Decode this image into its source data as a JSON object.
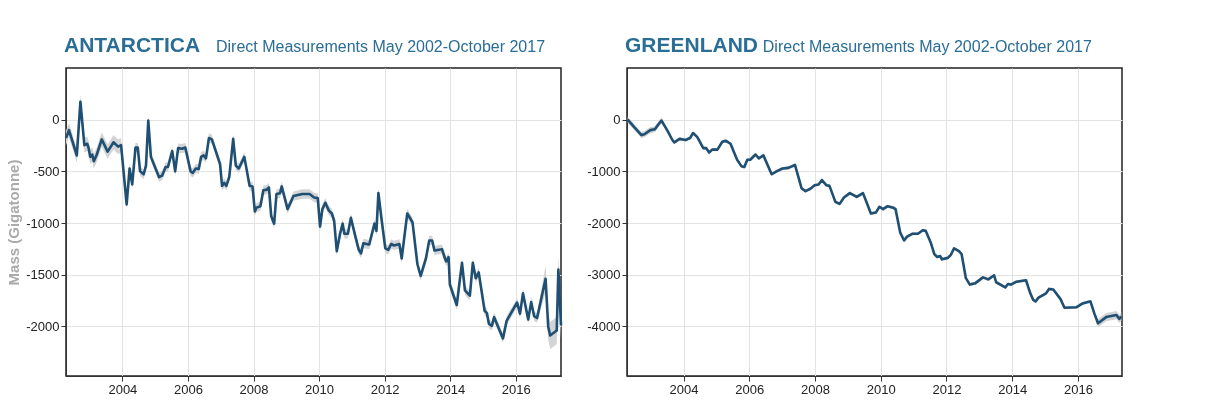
{
  "chart_data": [
    {
      "type": "line",
      "title": "ANTARCTICA",
      "subtitle": "Direct Measurements May 2002-October 2017",
      "ylabel": "Mass (Gigatonne)",
      "x": [
        2002.28,
        2002.37,
        2002.61,
        2002.72,
        2002.84,
        2002.93,
        2002.97,
        2003.02,
        2003.08,
        2003.13,
        2003.22,
        2003.37,
        2003.55,
        2003.73,
        2003.87,
        2003.96,
        2004.13,
        2004.22,
        2004.3,
        2004.4,
        2004.47,
        2004.54,
        2004.65,
        2004.72,
        2004.79,
        2004.87,
        2005.12,
        2005.21,
        2005.32,
        2005.39,
        2005.52,
        2005.61,
        2005.7,
        2005.82,
        2005.92,
        2006.08,
        2006.15,
        2006.24,
        2006.33,
        2006.4,
        2006.48,
        2006.55,
        2006.64,
        2006.73,
        2006.98,
        2007.04,
        2007.11,
        2007.17,
        2007.26,
        2007.38,
        2007.46,
        2007.55,
        2007.72,
        2007.88,
        2007.97,
        2008.04,
        2008.09,
        2008.21,
        2008.3,
        2008.41,
        2008.47,
        2008.54,
        2008.63,
        2008.7,
        2008.81,
        2008.86,
        2009.04,
        2009.22,
        2009.49,
        2009.71,
        2009.85,
        2009.96,
        2010.03,
        2010.1,
        2010.19,
        2010.3,
        2010.39,
        2010.46,
        2010.54,
        2010.64,
        2010.72,
        2010.77,
        2010.88,
        2010.97,
        2011.12,
        2011.21,
        2011.28,
        2011.35,
        2011.53,
        2011.69,
        2011.75,
        2011.81,
        2011.89,
        2012.02,
        2012.11,
        2012.2,
        2012.29,
        2012.45,
        2012.52,
        2012.69,
        2012.85,
        2013.0,
        2013.1,
        2013.26,
        2013.36,
        2013.45,
        2013.52,
        2013.75,
        2013.84,
        2013.88,
        2013.95,
        2013.99,
        2014.11,
        2014.2,
        2014.3,
        2014.36,
        2014.45,
        2014.6,
        2014.69,
        2014.78,
        2014.87,
        2015.05,
        2015.12,
        2015.18,
        2015.27,
        2015.34,
        2015.61,
        2015.72,
        2016.04,
        2016.13,
        2016.22,
        2016.38,
        2016.47,
        2016.56,
        2016.65,
        2016.91,
        2016.99,
        2017.05,
        2017.25,
        2017.3,
        2017.38
      ],
      "series": [
        {
          "color": "#1f4f73",
          "values": [
            -177,
            -101,
            -346,
            174,
            -247,
            -233,
            -275,
            -360,
            -337,
            -402,
            -337,
            -191,
            -309,
            -219,
            -261,
            -247,
            -820,
            -472,
            -626,
            -270,
            -270,
            -500,
            -528,
            -444,
            -8,
            -360,
            -556,
            -542,
            -458,
            -458,
            -303,
            -500,
            -275,
            -281,
            -270,
            -500,
            -514,
            -472,
            -478,
            -360,
            -346,
            -374,
            -177,
            -191,
            -430,
            -640,
            -612,
            -640,
            -556,
            -185,
            -444,
            -472,
            -360,
            -640,
            -646,
            -888,
            -851,
            -837,
            -683,
            -677,
            -655,
            -935,
            -1006,
            -719,
            -711,
            -646,
            -865,
            -739,
            -719,
            -719,
            -753,
            -759,
            -1034,
            -865,
            -804,
            -880,
            -908,
            -978,
            -1273,
            -1104,
            -1006,
            -1104,
            -1104,
            -950,
            -1146,
            -1259,
            -1293,
            -1197,
            -1208,
            -1006,
            -1076,
            -711,
            -922,
            -1245,
            -1259,
            -1203,
            -1217,
            -1203,
            -1343,
            -908,
            -992,
            -1399,
            -1512,
            -1343,
            -1169,
            -1169,
            -1265,
            -1253,
            -1343,
            -1371,
            -1329,
            -1596,
            -1708,
            -1793,
            -1534,
            -1385,
            -1652,
            -1703,
            -1385,
            -1534,
            -1478,
            -1849,
            -1871,
            -1975,
            -1995,
            -1911,
            -2116,
            -1947,
            -1770,
            -1877,
            -1680,
            -1933,
            -1765,
            -1900,
            -1919,
            -1540,
            -2004,
            -2088,
            -2040,
            -1450,
            -1989
          ],
          "lower": [
            -247,
            -171,
            -416,
            104,
            -317,
            -303,
            -345,
            -430,
            -407,
            -472,
            -407,
            -261,
            -379,
            -289,
            -331,
            -317,
            -865,
            -517,
            -671,
            -315,
            -315,
            -545,
            -573,
            -489,
            -53,
            -405,
            -601,
            -587,
            -503,
            -503,
            -348,
            -545,
            -320,
            -326,
            -315,
            -545,
            -559,
            -517,
            -523,
            -405,
            -391,
            -419,
            -222,
            -236,
            -475,
            -685,
            -657,
            -685,
            -601,
            -230,
            -489,
            -517,
            -405,
            -685,
            -691,
            -933,
            -896,
            -882,
            -728,
            -722,
            -700,
            -980,
            -1051,
            -764,
            -756,
            -691,
            -910,
            -784,
            -764,
            -764,
            -798,
            -804,
            -1079,
            -910,
            -849,
            -925,
            -953,
            -1023,
            -1318,
            -1149,
            -1051,
            -1149,
            -1149,
            -995,
            -1191,
            -1304,
            -1338,
            -1242,
            -1253,
            -1051,
            -1121,
            -756,
            -967,
            -1290,
            -1304,
            -1248,
            -1262,
            -1248,
            -1388,
            -953,
            -1037,
            -1444,
            -1557,
            -1388,
            -1214,
            -1214,
            -1310,
            -1298,
            -1388,
            -1416,
            -1374,
            -1641,
            -1753,
            -1838,
            -1579,
            -1430,
            -1697,
            -1748,
            -1430,
            -1579,
            -1523,
            -1894,
            -1916,
            -2020,
            -2040,
            -1956,
            -2161,
            -1992,
            -1815,
            -1922,
            -1725,
            -1978,
            -1810,
            -1945,
            -1964,
            -1670,
            -2134,
            -2218,
            -2170,
            -1580,
            -2119
          ],
          "upper": [
            -107,
            -31,
            -276,
            244,
            -177,
            -163,
            -205,
            -290,
            -267,
            -332,
            -267,
            -121,
            -239,
            -149,
            -191,
            -177,
            -775,
            -427,
            -581,
            -225,
            -225,
            -455,
            -483,
            -399,
            37,
            -315,
            -511,
            -497,
            -413,
            -413,
            -258,
            -455,
            -230,
            -236,
            -225,
            -455,
            -469,
            -427,
            -433,
            -315,
            -301,
            -329,
            -132,
            -146,
            -385,
            -595,
            -567,
            -595,
            -511,
            -140,
            -399,
            -427,
            -315,
            -595,
            -601,
            -843,
            -806,
            -792,
            -638,
            -632,
            -610,
            -890,
            -961,
            -674,
            -666,
            -601,
            -820,
            -694,
            -674,
            -674,
            -708,
            -714,
            -989,
            -820,
            -759,
            -835,
            -863,
            -933,
            -1228,
            -1059,
            -961,
            -1059,
            -1059,
            -905,
            -1101,
            -1214,
            -1248,
            -1152,
            -1163,
            -961,
            -1031,
            -666,
            -877,
            -1200,
            -1214,
            -1158,
            -1172,
            -1158,
            -1298,
            -863,
            -947,
            -1354,
            -1467,
            -1298,
            -1124,
            -1124,
            -1220,
            -1208,
            -1298,
            -1326,
            -1284,
            -1551,
            -1663,
            -1748,
            -1489,
            -1340,
            -1607,
            -1658,
            -1340,
            -1489,
            -1433,
            -1804,
            -1826,
            -1930,
            -1950,
            -1866,
            -2071,
            -1902,
            -1725,
            -1832,
            -1635,
            -1888,
            -1720,
            -1855,
            -1874,
            -1410,
            -1874,
            -1958,
            -1910,
            -1320,
            -1859
          ]
        }
      ],
      "xlim": [
        2002.28,
        2017.38
      ],
      "xticks": [
        2004,
        2006,
        2008,
        2010,
        2012,
        2014,
        2016
      ],
      "ylim": [
        -2480,
        500
      ],
      "yticks": [
        -2000,
        -1500,
        -1000,
        -500,
        0
      ],
      "grid": true
    },
    {
      "type": "line",
      "title": "GREENLAND",
      "subtitle": "Direct Measurements May 2002-October 2017",
      "x": [
        2002.3,
        2002.5,
        2002.72,
        2002.81,
        2002.99,
        2003.13,
        2003.21,
        2003.33,
        2003.51,
        2003.66,
        2003.72,
        2003.88,
        2004.06,
        2004.2,
        2004.29,
        2004.42,
        2004.6,
        2004.69,
        2004.78,
        2004.87,
        2005.03,
        2005.18,
        2005.29,
        2005.43,
        2005.63,
        2005.76,
        2005.85,
        2005.94,
        2006.03,
        2006.19,
        2006.29,
        2006.43,
        2006.68,
        2006.83,
        2007.01,
        2007.19,
        2007.39,
        2007.59,
        2007.71,
        2007.86,
        2007.99,
        2008.11,
        2008.21,
        2008.35,
        2008.44,
        2008.62,
        2008.75,
        2008.88,
        2009.06,
        2009.27,
        2009.46,
        2009.58,
        2009.7,
        2009.85,
        2009.96,
        2010.07,
        2010.21,
        2010.38,
        2010.45,
        2010.59,
        2010.71,
        2010.8,
        2010.96,
        2011.13,
        2011.28,
        2011.37,
        2011.52,
        2011.63,
        2011.72,
        2011.81,
        2011.86,
        2012.04,
        2012.13,
        2012.23,
        2012.38,
        2012.46,
        2012.59,
        2012.71,
        2012.88,
        2013.11,
        2013.27,
        2013.45,
        2013.51,
        2013.64,
        2013.79,
        2013.87,
        2013.96,
        2014.13,
        2014.42,
        2014.55,
        2014.64,
        2014.71,
        2014.8,
        2015.03,
        2015.12,
        2015.25,
        2015.47,
        2015.59,
        2015.96,
        2016.14,
        2016.3,
        2016.38,
        2016.5,
        2016.61,
        2016.86,
        2017.17,
        2017.26,
        2017.32
      ],
      "series": [
        {
          "color": "#1f4f73",
          "values": [
            0,
            -146,
            -298,
            -281,
            -202,
            -185,
            -112,
            -17,
            -213,
            -393,
            -438,
            -371,
            -393,
            -354,
            -258,
            -337,
            -551,
            -551,
            -635,
            -579,
            -579,
            -427,
            -410,
            -466,
            -775,
            -899,
            -916,
            -775,
            -775,
            -674,
            -747,
            -691,
            -1056,
            -1000,
            -944,
            -933,
            -876,
            -1326,
            -1382,
            -1337,
            -1270,
            -1253,
            -1169,
            -1270,
            -1281,
            -1590,
            -1629,
            -1506,
            -1421,
            -1494,
            -1421,
            -1618,
            -1815,
            -1798,
            -1685,
            -1730,
            -1674,
            -1702,
            -1730,
            -2180,
            -2337,
            -2264,
            -2208,
            -2208,
            -2140,
            -2152,
            -2376,
            -2601,
            -2657,
            -2640,
            -2702,
            -2674,
            -2618,
            -2489,
            -2545,
            -2601,
            -3067,
            -3191,
            -3163,
            -3051,
            -3090,
            -3011,
            -3146,
            -3191,
            -3247,
            -3180,
            -3191,
            -3135,
            -3107,
            -3360,
            -3489,
            -3517,
            -3444,
            -3360,
            -3275,
            -3286,
            -3472,
            -3640,
            -3629,
            -3556,
            -3528,
            -3517,
            -3753,
            -3938,
            -3820,
            -3781,
            -3854,
            -3809
          ],
          "lower": [
            -60,
            -206,
            -358,
            -341,
            -262,
            -245,
            -172,
            -77,
            -243,
            -423,
            -468,
            -401,
            -423,
            -384,
            -288,
            -367,
            -581,
            -581,
            -665,
            -609,
            -609,
            -457,
            -440,
            -496,
            -805,
            -929,
            -946,
            -805,
            -805,
            -704,
            -777,
            -721,
            -1086,
            -1030,
            -974,
            -963,
            -906,
            -1356,
            -1412,
            -1367,
            -1300,
            -1283,
            -1199,
            -1300,
            -1311,
            -1620,
            -1659,
            -1536,
            -1451,
            -1524,
            -1451,
            -1648,
            -1845,
            -1828,
            -1715,
            -1760,
            -1704,
            -1732,
            -1760,
            -2210,
            -2367,
            -2294,
            -2238,
            -2238,
            -2170,
            -2182,
            -2406,
            -2631,
            -2687,
            -2670,
            -2732,
            -2704,
            -2648,
            -2519,
            -2575,
            -2631,
            -3097,
            -3221,
            -3193,
            -3081,
            -3120,
            -3041,
            -3176,
            -3221,
            -3277,
            -3210,
            -3221,
            -3165,
            -3137,
            -3390,
            -3519,
            -3547,
            -3474,
            -3390,
            -3305,
            -3316,
            -3502,
            -3670,
            -3659,
            -3586,
            -3558,
            -3547,
            -3783,
            -4018,
            -3900,
            -3861,
            -3934,
            -3889
          ],
          "upper": [
            60,
            -86,
            -238,
            -221,
            -142,
            -125,
            -52,
            43,
            -183,
            -363,
            -408,
            -341,
            -363,
            -324,
            -228,
            -307,
            -521,
            -521,
            -605,
            -549,
            -549,
            -397,
            -380,
            -436,
            -745,
            -869,
            -886,
            -745,
            -745,
            -644,
            -717,
            -661,
            -1026,
            -970,
            -914,
            -903,
            -846,
            -1296,
            -1352,
            -1307,
            -1240,
            -1223,
            -1139,
            -1240,
            -1251,
            -1560,
            -1599,
            -1476,
            -1391,
            -1464,
            -1391,
            -1588,
            -1785,
            -1768,
            -1655,
            -1700,
            -1644,
            -1672,
            -1700,
            -2150,
            -2307,
            -2234,
            -2178,
            -2178,
            -2110,
            -2122,
            -2346,
            -2571,
            -2627,
            -2610,
            -2672,
            -2644,
            -2588,
            -2459,
            -2515,
            -2571,
            -3037,
            -3161,
            -3133,
            -3021,
            -3060,
            -2981,
            -3116,
            -3161,
            -3217,
            -3150,
            -3161,
            -3105,
            -3077,
            -3330,
            -3459,
            -3487,
            -3414,
            -3330,
            -3245,
            -3256,
            -3442,
            -3610,
            -3599,
            -3526,
            -3498,
            -3487,
            -3723,
            -3858,
            -3740,
            -3701,
            -3774,
            -3729
          ]
        }
      ],
      "xlim": [
        2002.28,
        2017.34
      ],
      "xticks": [
        2004,
        2006,
        2008,
        2010,
        2012,
        2014,
        2016
      ],
      "ylim": [
        -4960,
        1000
      ],
      "yticks": [
        -4000,
        -3000,
        -2000,
        -1000,
        0
      ],
      "grid": true
    }
  ]
}
